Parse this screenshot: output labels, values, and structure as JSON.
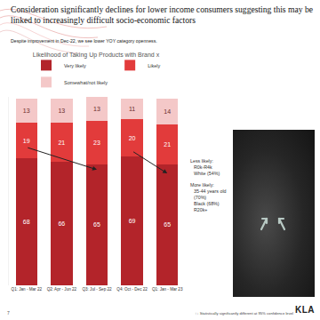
{
  "title": "Consideration significantly declines for lower income consumers suggesting this may be linked to increasingly difficult socio-economic factors",
  "subtitle": "Despite improvement in Dec-22, we see lower YOY category openness.",
  "chart_data": {
    "type": "bar",
    "title": "Likelihood of Taking Up Products with Brand x",
    "categories": [
      "Q1: Jan - Mar 22",
      "Q2: Apr - Jun 22",
      "Q3: Jul - Sep 22",
      "Q4: Oct - Dec 22",
      "Q1: Jan - Mar 23"
    ],
    "series": [
      {
        "name": "Very likely",
        "color": "#b3242a",
        "values": [
          68,
          66,
          65,
          69,
          65
        ]
      },
      {
        "name": "Likely",
        "color": "#e23b3b",
        "values": [
          19,
          21,
          23,
          20,
          21
        ]
      },
      {
        "name": "Somewhat/not likely",
        "color": "#f4c8c8",
        "values": [
          13,
          13,
          13,
          11,
          14
        ]
      }
    ],
    "stacked": true,
    "data_labels": true,
    "legend": "top",
    "grid": false,
    "tick_labels": "x",
    "ylim": [
      0,
      101
    ],
    "yticks": []
  },
  "side_notes": [
    {
      "heading": "Less likely:",
      "items": [
        "R0k-R4k",
        "White (54%)"
      ]
    },
    {
      "heading": "More likely:",
      "items": [
        "35-44 years old (70%)",
        "Black (68%)",
        "R20k+"
      ]
    }
  ],
  "footnote": "↑↓ Statistically significantly different at 95% confidence level",
  "page_number": "7",
  "logo": "KLA"
}
